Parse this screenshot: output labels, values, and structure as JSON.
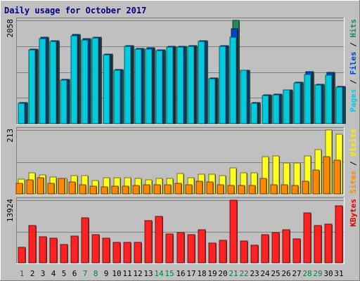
{
  "chart_data": {
    "type": "bar",
    "title": "Daily usage for October 2017",
    "days": [
      "1",
      "2",
      "3",
      "4",
      "5",
      "6",
      "7",
      "8",
      "9",
      "10",
      "11",
      "12",
      "13",
      "14",
      "15",
      "16",
      "17",
      "18",
      "19",
      "20",
      "21",
      "22",
      "23",
      "24",
      "25",
      "26",
      "27",
      "28",
      "29",
      "30",
      "31"
    ],
    "weekend_days": [
      1,
      7,
      8,
      14,
      15,
      21,
      22,
      28,
      29
    ],
    "panels": [
      {
        "id": "top",
        "max_label": "2058",
        "max": 2058,
        "right_labels": [
          {
            "text": "Pages",
            "color": "#00ccdd"
          },
          {
            "text": " / ",
            "color": "#000000"
          },
          {
            "text": "Files",
            "color": "#0044cc"
          },
          {
            "text": " / ",
            "color": "#000000"
          },
          {
            "text": "Hits",
            "color": "#228855"
          }
        ],
        "series": [
          {
            "name": "Hits",
            "color": "#228855",
            "values": [
              414,
              1480,
              1719,
              1656,
              888,
              1771,
              1692,
              1719,
              1380,
              1074,
              1553,
              1498,
              1508,
              1474,
              1534,
              1534,
              1553,
              1652,
              906,
              1553,
              2058,
              1068,
              420,
              573,
              582,
              677,
              827,
              1030,
              786,
              1016,
              747
            ]
          },
          {
            "name": "Files",
            "color": "#0044cc",
            "values": [
              414,
              1480,
              1719,
              1656,
              888,
              1771,
              1692,
              1719,
              1380,
              1074,
              1553,
              1498,
              1508,
              1474,
              1534,
              1534,
              1553,
              1652,
              906,
              1553,
              1892,
              1068,
              420,
              573,
              582,
              677,
              827,
              1030,
              786,
              1016,
              747
            ]
          },
          {
            "name": "Pages",
            "color": "#00ccdd",
            "values": [
              400,
              1470,
              1695,
              1638,
              872,
              1751,
              1671,
              1704,
              1366,
              1066,
              1535,
              1487,
              1486,
              1458,
              1519,
              1522,
              1535,
              1635,
              889,
              1535,
              1719,
              1058,
              410,
              563,
              568,
              665,
              810,
              985,
              772,
              968,
              734
            ]
          }
        ]
      },
      {
        "id": "middle",
        "max_label": "213",
        "max": 213,
        "right_labels": [
          {
            "text": "Sites",
            "color": "#ff8800"
          },
          {
            "text": " / ",
            "color": "#000000"
          },
          {
            "text": "Visits",
            "color": "#ffee00"
          }
        ],
        "series": [
          {
            "name": "Visits",
            "color": "#ffff22",
            "values": [
              50,
              70,
              63,
              57,
              52,
              60,
              62,
              44,
              55,
              55,
              55,
              52,
              47,
              52,
              52,
              68,
              55,
              66,
              65,
              60,
              86,
              71,
              71,
              125,
              127,
              103,
              102,
              126,
              147,
              213,
              200
            ]
          },
          {
            "name": "Sites",
            "color": "#ff8800",
            "values": [
              36,
              46,
              55,
              34,
              52,
              40,
              30,
              26,
              23,
              25,
              25,
              27,
              31,
              30,
              31,
              35,
              31,
              42,
              40,
              31,
              28,
              28,
              28,
              51,
              30,
              30,
              28,
              41,
              79,
              124,
              112
            ]
          }
        ]
      },
      {
        "id": "bottom",
        "max_label": "13924",
        "max": 13924,
        "right_labels": [
          {
            "text": "KBytes",
            "color": "#dd0000"
          }
        ],
        "series": [
          {
            "name": "KBytes",
            "color": "#ff2222",
            "values": [
              3476,
              8335,
              5797,
              5526,
              4006,
              5937,
              10075,
              6198,
              5432,
              4604,
              4604,
              4604,
              9414,
              10346,
              6398,
              6661,
              6198,
              7395,
              4316,
              5071,
              13924,
              4826,
              3931,
              6320,
              6802,
              7395,
              5339,
              11172,
              8335,
              8636,
              12743
            ]
          }
        ]
      }
    ]
  }
}
